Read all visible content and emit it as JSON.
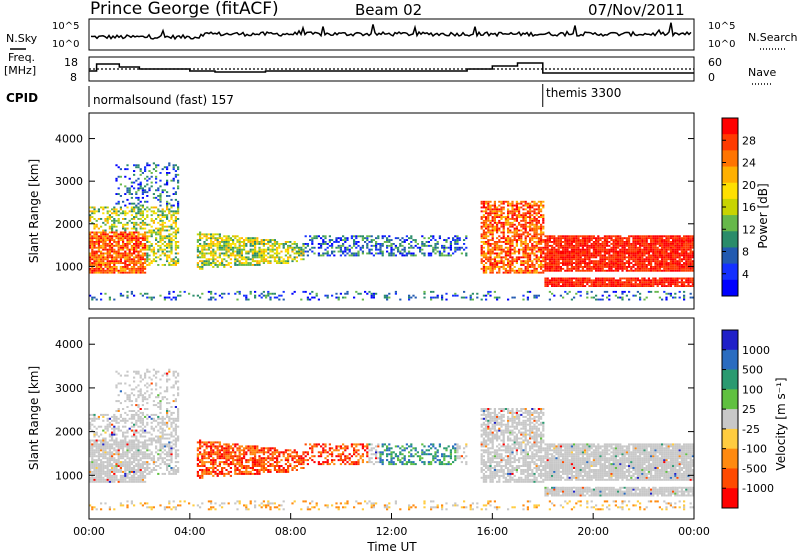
{
  "header": {
    "station": "Prince George (fitACF)",
    "beam": "Beam 02",
    "date": "07/Nov/2011"
  },
  "aux_labels": {
    "nsky": "N.Sky",
    "nsearch": "N.Search",
    "freq_top": "Freq.",
    "freq_unit": "[MHz]",
    "nave": "Nave",
    "cpid": "CPID",
    "nsky_ticks": [
      "10^5",
      "10^0"
    ],
    "nsearch_ticks": [
      "10^5",
      "10^0"
    ],
    "freq_ticks": [
      "18",
      "8"
    ],
    "nave_ticks": [
      "60",
      "0"
    ]
  },
  "cpid_segments": [
    {
      "label": "normalsound (fast) 157",
      "start_hour": 0,
      "end_hour": 18.0
    },
    {
      "label": "themis 3300",
      "start_hour": 18.0,
      "end_hour": 24
    }
  ],
  "chart_data": [
    {
      "type": "heatmap",
      "title": "",
      "ylabel": "Slant Range [km]",
      "xlabel": "",
      "xlim": [
        0,
        24
      ],
      "ylim": [
        0,
        4600
      ],
      "yticks": [
        "1000",
        "2000",
        "3000",
        "4000"
      ],
      "colorbar": {
        "label": "Power [dB]",
        "range": [
          0,
          30
        ],
        "ticks": [
          "28",
          "24",
          "20",
          "16",
          "12",
          "8",
          "4"
        ],
        "colors": [
          "#ff0000",
          "#ff3a00",
          "#ff7400",
          "#ffb000",
          "#ffe000",
          "#c8d400",
          "#66b84a",
          "#2a8c6a",
          "#225ab0",
          "#1430ff",
          "#0000ff"
        ]
      }
    },
    {
      "type": "heatmap",
      "title": "",
      "ylabel": "Slant Range [km]",
      "xlabel": "Time UT",
      "xlim": [
        0,
        24
      ],
      "ylim": [
        0,
        4600
      ],
      "yticks": [
        "1000",
        "2000",
        "3000",
        "4000"
      ],
      "xticks": [
        "00:00",
        "04:00",
        "08:00",
        "12:00",
        "16:00",
        "20:00",
        "00:00"
      ],
      "colorbar": {
        "label": "Velocity [m s⁻¹]",
        "ticks": [
          "1000",
          "500",
          "100",
          "25",
          "-25",
          "-100",
          "-500",
          "-1000"
        ],
        "colors": [
          "#2020c8",
          "#2a6cc0",
          "#2a9a70",
          "#60c040",
          "#c8c8c8",
          "#ffcc40",
          "#ff8a10",
          "#ff4a00",
          "#ff0000"
        ]
      }
    }
  ]
}
